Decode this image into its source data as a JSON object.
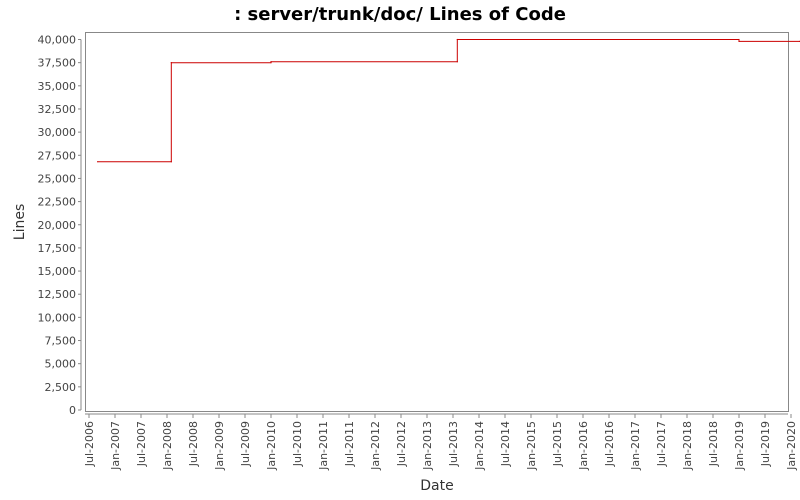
{
  "chart_data": {
    "type": "line",
    "title": ": server/trunk/doc/ Lines of Code",
    "xlabel": "Date",
    "ylabel": "Lines",
    "ylim": [
      0,
      40000
    ],
    "y_ticks": [
      0,
      2500,
      5000,
      7500,
      10000,
      12500,
      15000,
      17500,
      20000,
      22500,
      25000,
      27500,
      30000,
      32500,
      35000,
      37500,
      40000
    ],
    "y_tick_labels": [
      "0",
      "2,500",
      "5,000",
      "7,500",
      "10,000",
      "12,500",
      "15,000",
      "17,500",
      "20,000",
      "22,500",
      "25,000",
      "27,500",
      "30,000",
      "32,500",
      "35,000",
      "37,500",
      "40,000"
    ],
    "x_tick_labels": [
      "Jul-2006",
      "Jan-2007",
      "Jul-2007",
      "Jan-2008",
      "Jul-2008",
      "Jan-2009",
      "Jul-2009",
      "Jan-2010",
      "Jul-2010",
      "Jan-2011",
      "Jul-2011",
      "Jan-2012",
      "Jul-2012",
      "Jan-2013",
      "Jul-2013",
      "Jan-2014",
      "Jul-2014",
      "Jan-2015",
      "Jul-2015",
      "Jan-2016",
      "Jul-2016",
      "Jan-2017",
      "Jul-2017",
      "Jan-2018",
      "Jul-2018",
      "Jan-2019",
      "Jul-2019",
      "Jan-2020"
    ],
    "grid": false,
    "series": [
      {
        "color": "#cc0000",
        "points": [
          {
            "date": "2006-09",
            "value": 26800
          },
          {
            "date": "2008-02",
            "value": 26800
          },
          {
            "date": "2008-02",
            "value": 37500
          },
          {
            "date": "2010-01",
            "value": 37500
          },
          {
            "date": "2010-01",
            "value": 37600
          },
          {
            "date": "2013-08",
            "value": 37600
          },
          {
            "date": "2013-08",
            "value": 40000
          },
          {
            "date": "2019-01",
            "value": 40000
          },
          {
            "date": "2019-01",
            "value": 39800
          },
          {
            "date": "2020-03",
            "value": 39800
          }
        ]
      }
    ]
  }
}
